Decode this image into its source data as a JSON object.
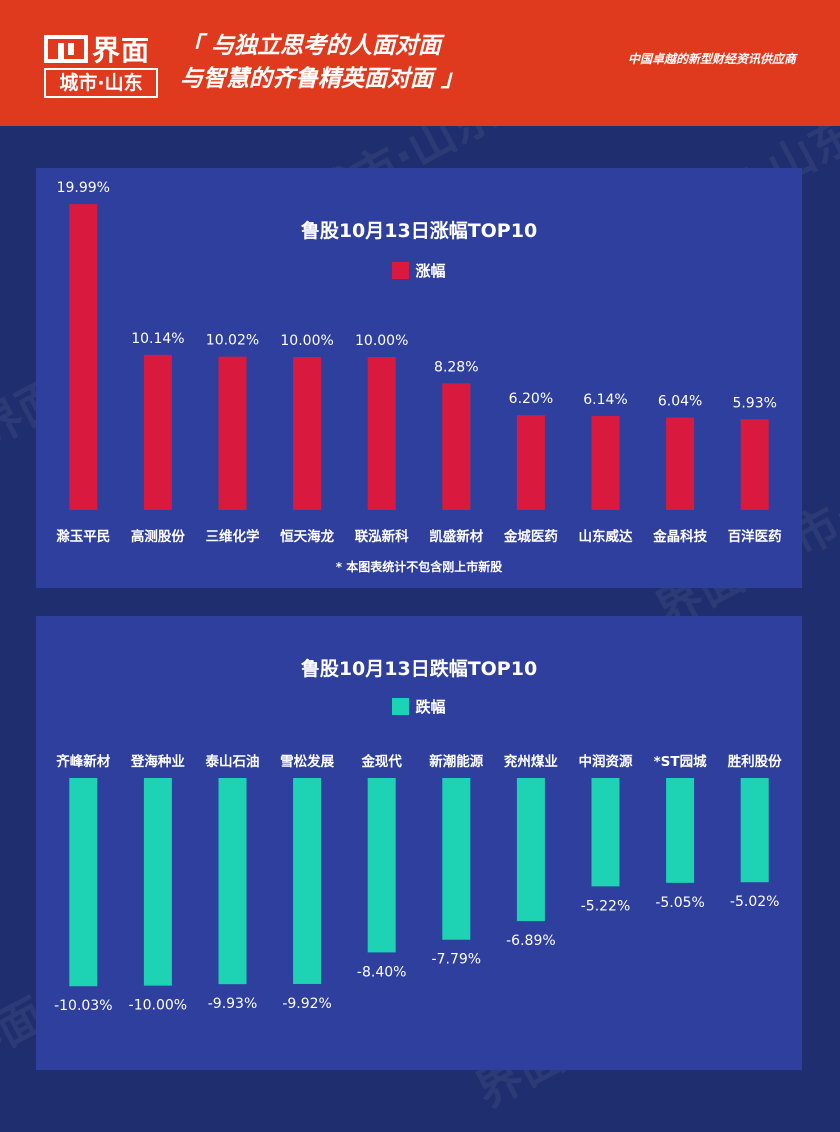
{
  "header": {
    "logo_brand": "界面",
    "logo_city": "城市·山东",
    "slogan_line1": "「 与独立思考的人面对面",
    "slogan_line2": "与智慧的齐鲁精英面对面 」",
    "tagline": "中国卓越的新型财经资讯供应商"
  },
  "colors": {
    "header_bg": "#e03a1e",
    "page_bg": "#1f2e6e",
    "panel_bg": "#2f3f9e",
    "gain_bar": "#d91a3e",
    "loss_bar": "#1ed3b4"
  },
  "chart_data": [
    {
      "type": "bar",
      "title": "鲁股10月13日涨幅TOP10",
      "legend": "涨幅",
      "categories": [
        "滁玉平民",
        "高测股份",
        "三维化学",
        "恒天海龙",
        "联泓新科",
        "凯盛新材",
        "金城医药",
        "山东威达",
        "金晶科技",
        "百洋医药"
      ],
      "values": [
        19.99,
        10.14,
        10.02,
        10.0,
        10.0,
        8.28,
        6.2,
        6.14,
        6.04,
        5.93
      ],
      "value_labels": [
        "19.99%",
        "10.14%",
        "10.02%",
        "10.00%",
        "10.00%",
        "8.28%",
        "6.20%",
        "6.14%",
        "6.04%",
        "5.93%"
      ],
      "ylim": [
        0,
        20
      ],
      "unit": "%",
      "footnote": "* 本图表统计不包含刚上市新股"
    },
    {
      "type": "bar",
      "title": "鲁股10月13日跌幅TOP10",
      "legend": "跌幅",
      "categories": [
        "齐峰新材",
        "登海种业",
        "泰山石油",
        "雪松发展",
        "金现代",
        "新潮能源",
        "兖州煤业",
        "中润资源",
        "*ST园城",
        "胜利股份"
      ],
      "values": [
        -10.03,
        -10.0,
        -9.93,
        -9.92,
        -8.4,
        -7.79,
        -6.89,
        -5.22,
        -5.05,
        -5.02
      ],
      "value_labels": [
        "-10.03%",
        "-10.00%",
        "-9.93%",
        "-9.92%",
        "-8.40%",
        "-7.79%",
        "-6.89%",
        "-5.22%",
        "-5.05%",
        "-5.02%"
      ],
      "ylim": [
        -10.5,
        0
      ],
      "unit": "%"
    }
  ]
}
